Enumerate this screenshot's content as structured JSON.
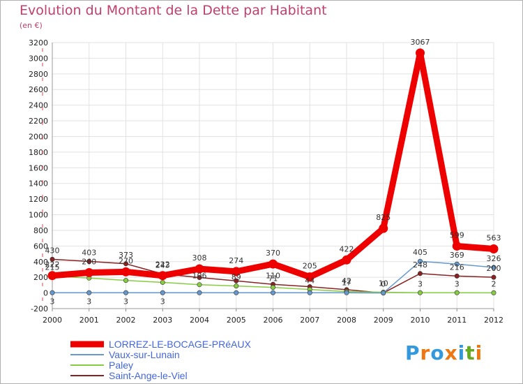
{
  "header": {
    "title": "Evolution du Montant de la Dette par Habitant",
    "subtitle": "(en €)"
  },
  "logo": {
    "text": "Proxiti"
  },
  "chart_data": {
    "type": "line",
    "title": "Evolution du Montant de la Dette par Habitant",
    "ylabel": "(en €)",
    "xlabel": "",
    "ylim": [
      -200,
      3200
    ],
    "yticks": [
      -200,
      0,
      200,
      400,
      600,
      800,
      1000,
      1200,
      1400,
      1600,
      1800,
      2000,
      2200,
      2400,
      2600,
      2800,
      3000,
      3200
    ],
    "categories": [
      "2000",
      "2001",
      "2002",
      "2003",
      "2004",
      "2005",
      "2006",
      "2007",
      "2008",
      "2009",
      "2010",
      "2011",
      "2012"
    ],
    "legend_position": "bottom",
    "grid": true,
    "series": [
      {
        "name": "LORREZ-LE-BOCAGE-PRéAUX",
        "color": "#ee0000",
        "values": [
          222,
          260,
          270,
          222,
          308,
          274,
          370,
          205,
          422,
          825,
          3067,
          599,
          563
        ],
        "labels": [
          "222",
          "260",
          "270",
          "222",
          "308",
          "274",
          "370",
          "205",
          "422",
          "825",
          "3067",
          "599",
          "563"
        ]
      },
      {
        "name": "Vaux-sur-Lunain",
        "color": "#6699cc",
        "values": [
          3,
          3,
          3,
          3,
          3,
          3,
          3,
          3,
          3,
          0,
          405,
          369,
          326
        ],
        "labels": [
          "3",
          "3",
          "3",
          "3",
          "",
          "",
          "",
          "",
          "",
          "",
          "405",
          "369",
          "326"
        ]
      },
      {
        "name": "Paley",
        "color": "#88cc44",
        "values": [
          215,
          190,
          160,
          135,
          106,
          89,
          71,
          44,
          17,
          10,
          3,
          3,
          2
        ],
        "labels": [
          "215",
          "",
          "",
          "",
          "106",
          "89",
          "71",
          "44",
          "17",
          "10",
          "3",
          "3",
          "2"
        ]
      },
      {
        "name": "Saint-Ange-le-Viel",
        "color": "#882222",
        "values": [
          430,
          403,
          373,
          243,
          197,
          155,
          110,
          80,
          42,
          0,
          248,
          216,
          200
        ],
        "labels": [
          "430",
          "403",
          "373",
          "243",
          "",
          "",
          "110",
          "",
          "42",
          "0",
          "248",
          "216",
          "200"
        ]
      }
    ]
  }
}
